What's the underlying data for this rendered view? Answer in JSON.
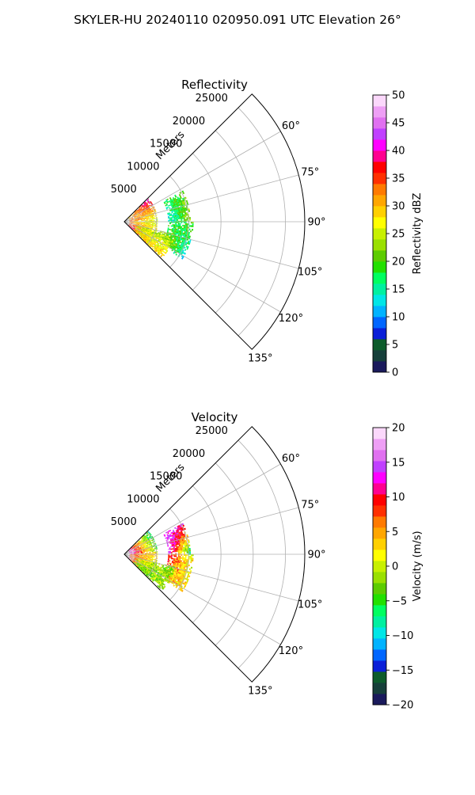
{
  "figure": {
    "suptitle": "SKYLER-HU  20240110  020950.091 UTC Elevation 26°"
  },
  "chart_data": [
    {
      "type": "heatmap",
      "subtype": "polar-sector",
      "title": "Reflectivity",
      "radial_label": "Meters",
      "radial_ticks": [
        5000,
        10000,
        15000,
        20000,
        25000
      ],
      "radial_tick_labels": [
        "5000",
        "10000",
        "15000",
        "20000",
        "25000"
      ],
      "rmax": 28000,
      "theta_ticks": [
        45,
        60,
        75,
        90,
        105,
        120,
        135
      ],
      "theta_tick_labels": [
        "",
        "60°",
        "75°",
        "90°",
        "105°",
        "120°",
        "135°"
      ],
      "theta_range": [
        45,
        135
      ],
      "grid": true,
      "colorbar": {
        "label": "Reflectivity dBZ",
        "vmin": 0,
        "vmax": 50,
        "ticks": [
          0,
          5,
          10,
          15,
          20,
          25,
          30,
          35,
          40,
          45,
          50
        ],
        "tick_labels": [
          "0",
          "5",
          "10",
          "15",
          "20",
          "25",
          "30",
          "35",
          "40",
          "45",
          "50"
        ],
        "colors": [
          "#1a1a5c",
          "#163f3a",
          "#0d5c2b",
          "#0a1fd8",
          "#0066ff",
          "#00b3ff",
          "#00e6e6",
          "#00f0a0",
          "#00ff60",
          "#22e000",
          "#5ccc00",
          "#9ae000",
          "#c8f000",
          "#ffff00",
          "#ffd000",
          "#ffa600",
          "#ff7a00",
          "#ff3000",
          "#ff0000",
          "#ff0090",
          "#ff00ff",
          "#c040ff",
          "#e070f0",
          "#ee9ff5",
          "#fbd8fb"
        ]
      },
      "echo_regions": [
        {
          "r0": 800,
          "r1": 5200,
          "a0": 46,
          "a1": 86,
          "values": [
            28,
            36,
            42,
            22
          ]
        },
        {
          "r0": 800,
          "r1": 5200,
          "a0": 86,
          "a1": 134,
          "values": [
            30,
            38,
            24,
            33
          ]
        },
        {
          "r0": 6800,
          "r1": 10300,
          "a0": 62,
          "a1": 90,
          "values": [
            18,
            12,
            20,
            24
          ]
        },
        {
          "r0": 6800,
          "r1": 10600,
          "a0": 90,
          "a1": 122,
          "values": [
            16,
            26,
            20,
            12
          ]
        },
        {
          "r0": 2000,
          "r1": 8000,
          "a0": 104,
          "a1": 134,
          "values": [
            24,
            28,
            22,
            30
          ]
        }
      ]
    },
    {
      "type": "heatmap",
      "subtype": "polar-sector",
      "title": "Velocity",
      "radial_label": "Meters",
      "radial_ticks": [
        5000,
        10000,
        15000,
        20000,
        25000
      ],
      "radial_tick_labels": [
        "5000",
        "10000",
        "15000",
        "20000",
        "25000"
      ],
      "rmax": 28000,
      "theta_ticks": [
        45,
        60,
        75,
        90,
        105,
        120,
        135
      ],
      "theta_tick_labels": [
        "",
        "60°",
        "75°",
        "90°",
        "105°",
        "120°",
        "135°"
      ],
      "theta_range": [
        45,
        135
      ],
      "grid": true,
      "colorbar": {
        "label": "Velocity (m/s)",
        "vmin": -20,
        "vmax": 20,
        "ticks": [
          -20,
          -15,
          -10,
          -5,
          0,
          5,
          10,
          15,
          20
        ],
        "tick_labels": [
          "−20",
          "−15",
          "−10",
          "−5",
          "0",
          "5",
          "10",
          "15",
          "20"
        ],
        "colors": [
          "#1a1a5c",
          "#163f3a",
          "#0d5c2b",
          "#0a1fd8",
          "#0066ff",
          "#00b3ff",
          "#00e6e6",
          "#00f0a0",
          "#00ff60",
          "#22e000",
          "#5ccc00",
          "#9ae000",
          "#c8f000",
          "#ffff00",
          "#ffd000",
          "#ffa600",
          "#ff7a00",
          "#ff3000",
          "#ff0000",
          "#ff0090",
          "#ff00ff",
          "#c040ff",
          "#e070f0",
          "#ee9ff5",
          "#fbd8fb"
        ]
      },
      "echo_regions": [
        {
          "r0": 800,
          "r1": 5200,
          "a0": 46,
          "a1": 86,
          "values": [
            12,
            15,
            -8,
            -4
          ]
        },
        {
          "r0": 800,
          "r1": 5200,
          "a0": 86,
          "a1": 134,
          "values": [
            8,
            10,
            3,
            -6
          ]
        },
        {
          "r0": 6800,
          "r1": 10300,
          "a0": 62,
          "a1": 90,
          "values": [
            14,
            16,
            13,
            -10
          ]
        },
        {
          "r0": 6800,
          "r1": 10600,
          "a0": 90,
          "a1": 122,
          "values": [
            10,
            4,
            1,
            2
          ]
        },
        {
          "r0": 2000,
          "r1": 8000,
          "a0": 104,
          "a1": 134,
          "values": [
            2,
            -5,
            -3,
            0
          ]
        }
      ]
    }
  ]
}
